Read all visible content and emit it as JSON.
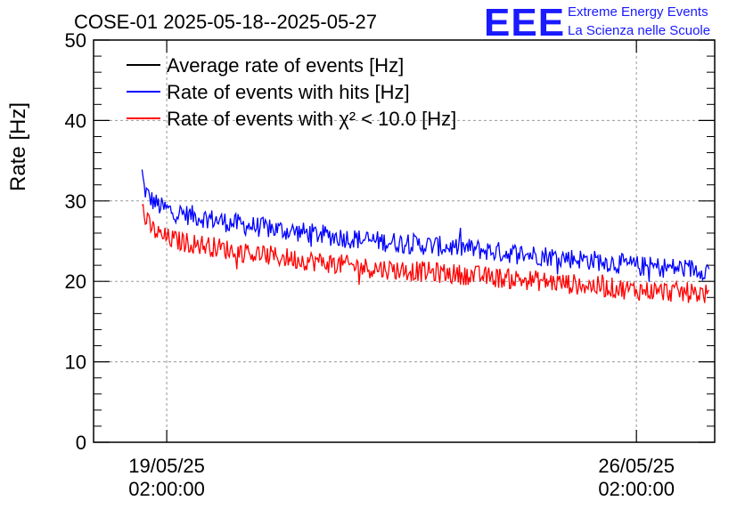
{
  "title": "COSE-01 2025-05-18--2025-05-27",
  "logo": {
    "mark": "EEE",
    "line1": "Extreme Energy Events",
    "line2": "La Scienza nelle Scuole"
  },
  "colors": {
    "average": "#000000",
    "hits": "#0000ff",
    "chi2": "#ff0000",
    "logo": "#1a1aff"
  },
  "chart_data": {
    "type": "line",
    "title": "COSE-01 2025-05-18--2025-05-27",
    "ylabel": "Rate [Hz]",
    "xlabel": "",
    "xlim": [
      "2025-05-17T23:50:00",
      "2025-05-27T06:00:00"
    ],
    "ylim": [
      0,
      50
    ],
    "yticks": [
      0,
      10,
      20,
      30,
      40,
      50
    ],
    "xticks": [
      {
        "x": "2025-05-19T02:00:00",
        "date": "19/05/25",
        "time": "02:00:00"
      },
      {
        "x": "2025-05-26T02:00:00",
        "date": "26/05/25",
        "time": "02:00:00"
      }
    ],
    "grid": true,
    "legend_position": "top-left",
    "series": [
      {
        "name": "Average rate of events [Hz]",
        "color": "#000000",
        "x": [],
        "y": []
      },
      {
        "name": "Rate of events with hits [Hz]",
        "color": "#0000ff",
        "x": [
          "2025-05-18T17:10:00",
          "2025-05-18T18:00:00",
          "2025-05-18T20:00:00",
          "2025-05-19T00:00:00",
          "2025-05-19T06:00:00",
          "2025-05-19T14:00:00",
          "2025-05-20T02:00:00",
          "2025-05-20T14:00:00",
          "2025-05-21T02:00:00",
          "2025-05-21T14:00:00",
          "2025-05-22T02:00:00",
          "2025-05-22T14:00:00",
          "2025-05-23T02:00:00",
          "2025-05-23T14:00:00",
          "2025-05-24T02:00:00",
          "2025-05-24T14:00:00",
          "2025-05-25T02:00:00",
          "2025-05-25T14:00:00",
          "2025-05-26T02:00:00",
          "2025-05-26T14:00:00",
          "2025-05-27T02:00:00",
          "2025-05-27T04:00:00"
        ],
        "y": [
          33.5,
          31.5,
          30.3,
          29.2,
          28.5,
          28.0,
          27.2,
          26.6,
          26.1,
          25.6,
          25.1,
          24.8,
          24.4,
          24.1,
          23.6,
          23.3,
          22.9,
          22.5,
          21.9,
          21.7,
          21.5,
          21.4
        ]
      },
      {
        "name": "Rate of events with χ² < 10.0 [Hz]",
        "color": "#ff0000",
        "x": [
          "2025-05-18T17:10:00",
          "2025-05-18T18:00:00",
          "2025-05-18T20:00:00",
          "2025-05-19T00:00:00",
          "2025-05-19T06:00:00",
          "2025-05-19T14:00:00",
          "2025-05-20T02:00:00",
          "2025-05-20T14:00:00",
          "2025-05-21T02:00:00",
          "2025-05-21T14:00:00",
          "2025-05-22T02:00:00",
          "2025-05-22T14:00:00",
          "2025-05-23T02:00:00",
          "2025-05-23T14:00:00",
          "2025-05-24T02:00:00",
          "2025-05-24T14:00:00",
          "2025-05-25T02:00:00",
          "2025-05-25T14:00:00",
          "2025-05-26T02:00:00",
          "2025-05-26T14:00:00",
          "2025-05-27T02:00:00",
          "2025-05-27T04:00:00"
        ],
        "y": [
          30.0,
          28.0,
          26.8,
          25.6,
          25.0,
          24.6,
          23.8,
          23.2,
          22.7,
          22.2,
          21.7,
          21.4,
          21.1,
          20.8,
          20.4,
          20.1,
          19.7,
          19.3,
          18.9,
          18.7,
          18.5,
          18.4
        ]
      }
    ]
  }
}
